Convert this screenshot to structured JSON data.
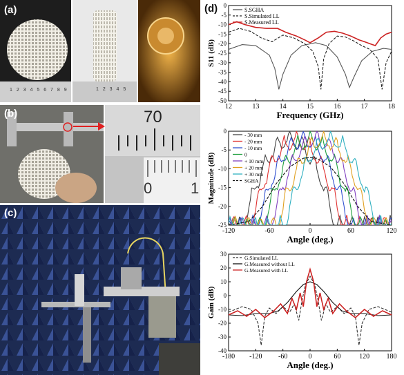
{
  "panel_labels": {
    "a": "(a)",
    "b": "(b)",
    "c": "(c)",
    "d": "(d)"
  },
  "photo_texts": {
    "ruler_a": "1 2 3 4 5 6 7 8 9",
    "ruler_a2": "1 2 3 4 5",
    "caliper_70": "70",
    "caliper_0": "0",
    "caliper_1": "1"
  },
  "chart_data": [
    {
      "type": "line",
      "xlabel": "Frequency (GHz)",
      "ylabel": "S11 (dB)",
      "xlim": [
        12,
        18
      ],
      "ylim": [
        -50,
        0
      ],
      "xticks": [
        "12",
        "13",
        "14",
        "15",
        "16",
        "17",
        "18"
      ],
      "yticks": [
        "-50",
        "-45",
        "-40",
        "-35",
        "-30",
        "-25",
        "-20",
        "-15",
        "-10",
        "-5",
        "0"
      ],
      "legend_position": "top-left",
      "series": [
        {
          "name": "S.SGHA",
          "color": "#555555",
          "dash": "solid",
          "x": [
            12,
            12.5,
            13,
            13.5,
            13.7,
            13.85,
            14,
            14.3,
            14.7,
            15.2,
            15.6,
            16,
            16.3,
            16.45,
            16.6,
            16.9,
            17.3,
            17.7,
            18
          ],
          "y": [
            -23,
            -20.5,
            -21,
            -26,
            -33,
            -44,
            -36,
            -26,
            -21,
            -19.5,
            -21,
            -27,
            -36,
            -43,
            -38,
            -29,
            -24,
            -22.5,
            -23
          ]
        },
        {
          "name": "S.Simulated LL",
          "color": "#222222",
          "dash": "dashed",
          "x": [
            12,
            12.4,
            12.8,
            13.2,
            13.6,
            14,
            14.4,
            14.8,
            15.1,
            15.3,
            15.4,
            15.5,
            15.7,
            16,
            16.3,
            16.6,
            16.9,
            17.2,
            17.5,
            17.65,
            17.8,
            18
          ],
          "y": [
            -14,
            -12,
            -13.5,
            -17,
            -19,
            -15.5,
            -17,
            -20,
            -24,
            -32,
            -44,
            -28,
            -20,
            -16,
            -16.5,
            -18.5,
            -21,
            -23,
            -28,
            -44,
            -30,
            -24
          ]
        },
        {
          "name": "S.Measured LL",
          "color": "#cc2222",
          "dash": "solid",
          "x": [
            12,
            12.3,
            12.6,
            13,
            13.4,
            13.8,
            14.1,
            14.5,
            14.8,
            15,
            15.3,
            15.6,
            15.9,
            16.2,
            16.5,
            16.8,
            17,
            17.2,
            17.4,
            17.6,
            17.8,
            18
          ],
          "y": [
            -10,
            -8.5,
            -10,
            -11.5,
            -12,
            -12,
            -14,
            -16,
            -18,
            -19.5,
            -17,
            -14,
            -13.5,
            -14.5,
            -16,
            -18,
            -19,
            -20,
            -21,
            -17,
            -15,
            -14
          ]
        }
      ]
    },
    {
      "type": "line",
      "xlabel": "Angle (deg.)",
      "ylabel": "Magnitude (dB)",
      "xlim": [
        -120,
        120
      ],
      "ylim": [
        -25,
        0
      ],
      "xticks": [
        "-120",
        "-60",
        "0",
        "60",
        "120"
      ],
      "yticks": [
        "-25",
        "-20",
        "-15",
        "-10",
        "-5",
        "0"
      ],
      "legend_position": "top-left",
      "series": [
        {
          "name": "- 30 mm",
          "color": "#444444",
          "center": -30
        },
        {
          "name": "- 20 mm",
          "color": "#e03030",
          "center": -20
        },
        {
          "name": "- 10 mm",
          "color": "#3050d0",
          "center": -10
        },
        {
          "name": "0",
          "color": "#20a040",
          "center": 0
        },
        {
          "name": "+ 10 mm",
          "color": "#8040c0",
          "center": 10
        },
        {
          "name": "+ 20 mm",
          "color": "#e0a020",
          "center": 20
        },
        {
          "name": "+ 30 mm",
          "color": "#30b0c0",
          "center": 30
        },
        {
          "name": "SGHA",
          "color": "#111111",
          "center": 0,
          "dash": "dashed",
          "x": [
            -120,
            -90,
            -70,
            -50,
            -30,
            -10,
            0,
            10,
            30,
            50,
            70,
            90,
            120
          ],
          "y": [
            -25,
            -24,
            -20,
            -14,
            -9.5,
            -7.2,
            -7,
            -7.2,
            -9.5,
            -14,
            -20,
            -24,
            -25
          ]
        }
      ]
    },
    {
      "type": "line",
      "xlabel": "Angle (deg.)",
      "ylabel": "Gain (dB)",
      "xlim": [
        -180,
        180
      ],
      "ylim": [
        -40,
        30
      ],
      "xticks": [
        "-180",
        "-120",
        "-60",
        "0",
        "60",
        "120",
        "180"
      ],
      "yticks": [
        "-40",
        "-30",
        "-20",
        "-10",
        "0",
        "10",
        "20",
        "30"
      ],
      "legend_position": "top-left",
      "series": [
        {
          "name": "G.Simulated LL",
          "color": "#333333",
          "dash": "dashed",
          "x": [
            -180,
            -150,
            -130,
            -115,
            -108,
            -100,
            -90,
            -75,
            -60,
            -45,
            -35,
            -25,
            -18,
            -10,
            0,
            10,
            18,
            25,
            35,
            45,
            60,
            75,
            90,
            100,
            108,
            115,
            130,
            150,
            180
          ],
          "y": [
            -12,
            -8,
            -10,
            -20,
            -36,
            -15,
            -9,
            -13,
            -8,
            -12,
            -6,
            -18,
            -4,
            8,
            14,
            8,
            -4,
            -18,
            -6,
            -12,
            -8,
            -13,
            -9,
            -15,
            -36,
            -20,
            -10,
            -8,
            -12
          ]
        },
        {
          "name": "G.Measured without LL",
          "color": "#111111",
          "dash": "solid",
          "x": [
            -180,
            -150,
            -120,
            -90,
            -70,
            -50,
            -30,
            -15,
            0,
            15,
            30,
            50,
            70,
            90,
            120,
            150,
            180
          ],
          "y": [
            -14,
            -14.5,
            -13,
            -13,
            -11,
            -5,
            3,
            8,
            10,
            8,
            3,
            -5,
            -11,
            -13,
            -13,
            -14.5,
            -14
          ]
        },
        {
          "name": "G.Measured with LL",
          "color": "#cc2222",
          "dash": "solid",
          "x": [
            -180,
            -160,
            -140,
            -120,
            -100,
            -80,
            -65,
            -50,
            -40,
            -30,
            -22,
            -15,
            -8,
            0,
            8,
            15,
            22,
            30,
            40,
            50,
            65,
            80,
            100,
            120,
            140,
            160,
            180
          ],
          "y": [
            -14,
            -11,
            -15,
            -10,
            -16,
            -11,
            -6,
            -13,
            -2,
            -10,
            2,
            -8,
            10,
            19,
            10,
            -8,
            2,
            -10,
            -2,
            -13,
            -6,
            -11,
            -16,
            -10,
            -15,
            -11,
            -14
          ]
        }
      ]
    }
  ]
}
